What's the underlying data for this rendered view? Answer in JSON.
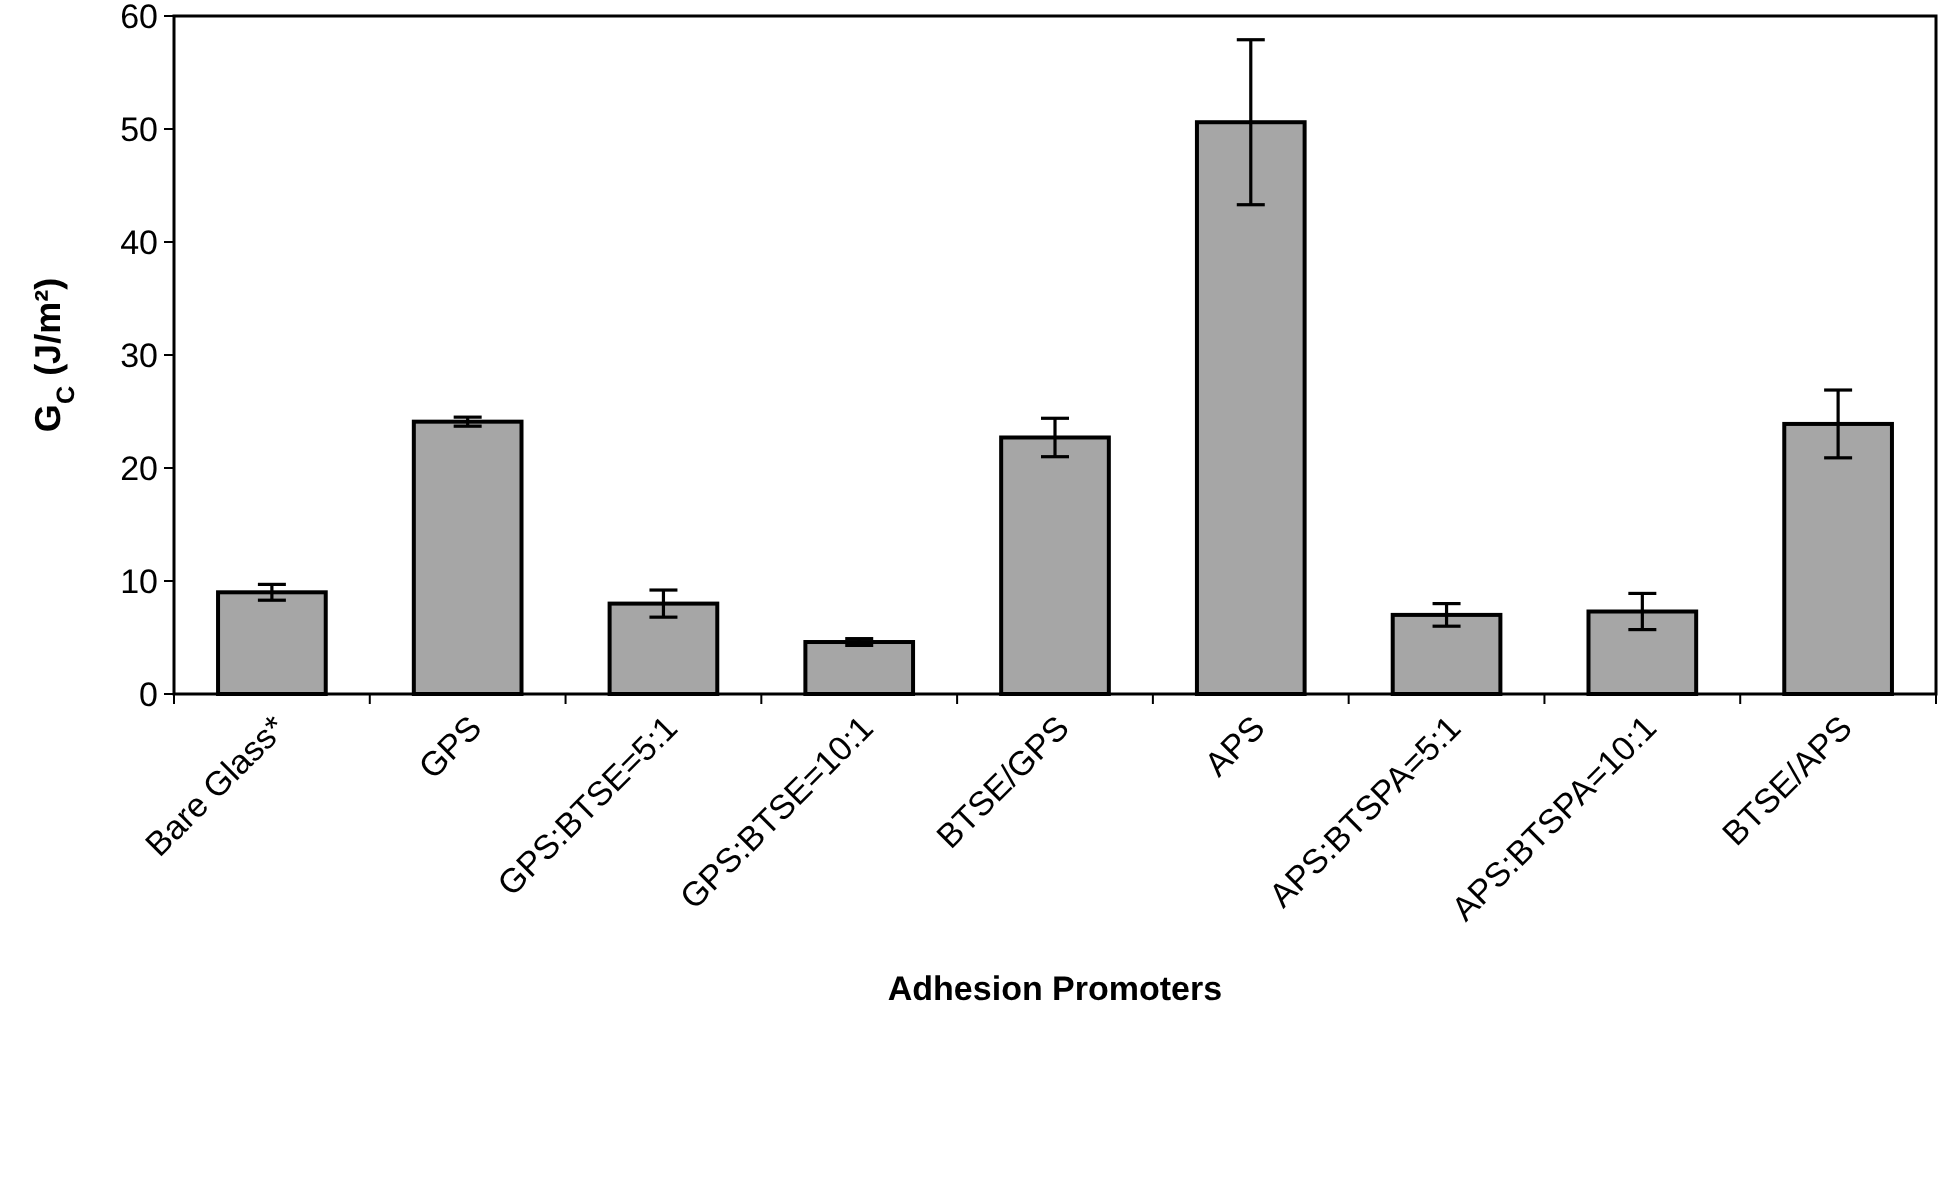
{
  "chart_data": {
    "type": "bar",
    "xlabel": "Adhesion Promoters",
    "ylabel": "G$_{C}$ (J/m²)",
    "categories": [
      "Bare Glass*",
      "GPS",
      "GPS:BTSE=5:1",
      "GPS:BTSE=10:1",
      "BTSE/GPS",
      "APS",
      "APS:BTSPA=5:1",
      "APS:BTSPA=10:1",
      "BTSE/APS"
    ],
    "values": [
      9,
      24.1,
      8,
      4.6,
      22.7,
      50.6,
      7,
      7.3,
      23.9
    ],
    "errors": [
      0.7,
      0.4,
      1.2,
      0.3,
      1.7,
      7.3,
      1,
      1.6,
      3
    ],
    "color": "#a6a6a6",
    "ylim": [
      0,
      60
    ],
    "yticks": [
      0,
      10,
      20,
      30,
      40,
      50,
      60
    ],
    "grid": false
  }
}
